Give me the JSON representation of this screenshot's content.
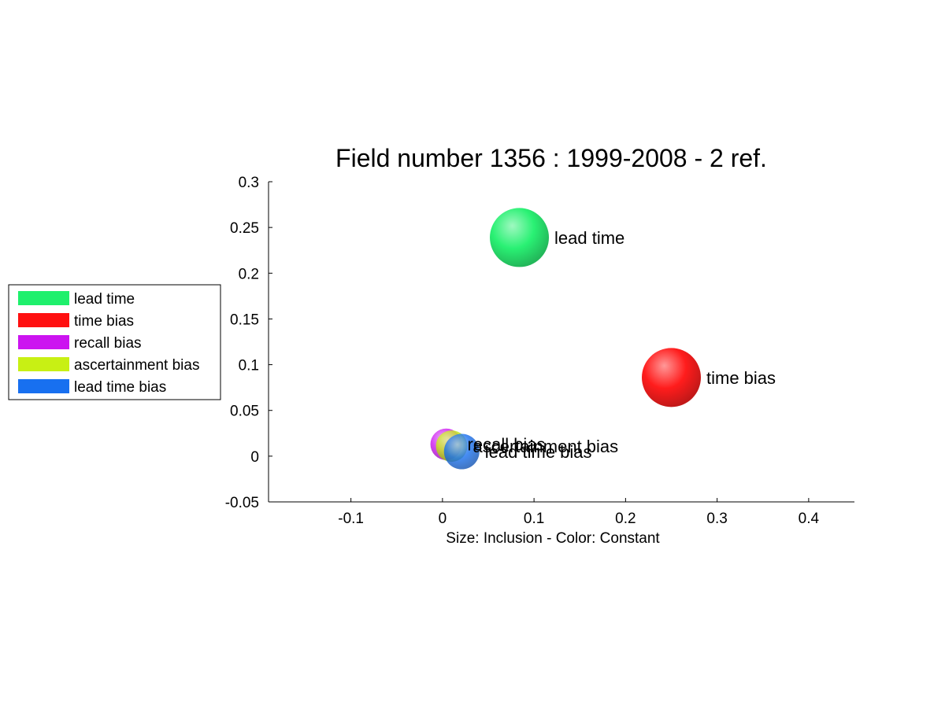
{
  "chart_data": {
    "type": "scatter",
    "title": "Field number 1356 : 1999-2008  - 2 ref.",
    "xlabel": "Size: Inclusion - Color: Constant",
    "ylabel": "",
    "xlim": [
      -0.19,
      0.45
    ],
    "ylim": [
      -0.05,
      0.3
    ],
    "xticks": [
      -0.1,
      0,
      0.1,
      0.2,
      0.3,
      0.4
    ],
    "xtick_labels": [
      "-0.1",
      "0",
      "0.1",
      "0.2",
      "0.3",
      "0.4"
    ],
    "yticks": [
      -0.05,
      0,
      0.05,
      0.1,
      0.15,
      0.2,
      0.25,
      0.3
    ],
    "ytick_labels": [
      "-0.05",
      "0",
      "0.05",
      "0.1",
      "0.15",
      "0.2",
      "0.25",
      "0.3"
    ],
    "grid": false,
    "legend_position": "left",
    "legend": [
      {
        "label": "lead time",
        "color": "#1ef06c"
      },
      {
        "label": "time bias",
        "color": "#ff1010"
      },
      {
        "label": "recall bias",
        "color": "#cc14f0"
      },
      {
        "label": "ascertainment bias",
        "color": "#c8f014"
      },
      {
        "label": "lead time bias",
        "color": "#1870f0"
      }
    ],
    "series": [
      {
        "name": "lead time",
        "x": 0.084,
        "y": 0.239,
        "size": 3,
        "color": "#1ef06c"
      },
      {
        "name": "time bias",
        "x": 0.25,
        "y": 0.086,
        "size": 3,
        "color": "#ff1010"
      },
      {
        "name": "recall bias",
        "x": 0.004,
        "y": 0.013,
        "size": 1.6,
        "color": "#cc14f0"
      },
      {
        "name": "ascertainment bias",
        "x": 0.01,
        "y": 0.011,
        "size": 1.6,
        "color": "#c8f014"
      },
      {
        "name": "lead time bias",
        "x": 0.021,
        "y": 0.005,
        "size": 1.8,
        "color": "#1870f0"
      }
    ]
  }
}
